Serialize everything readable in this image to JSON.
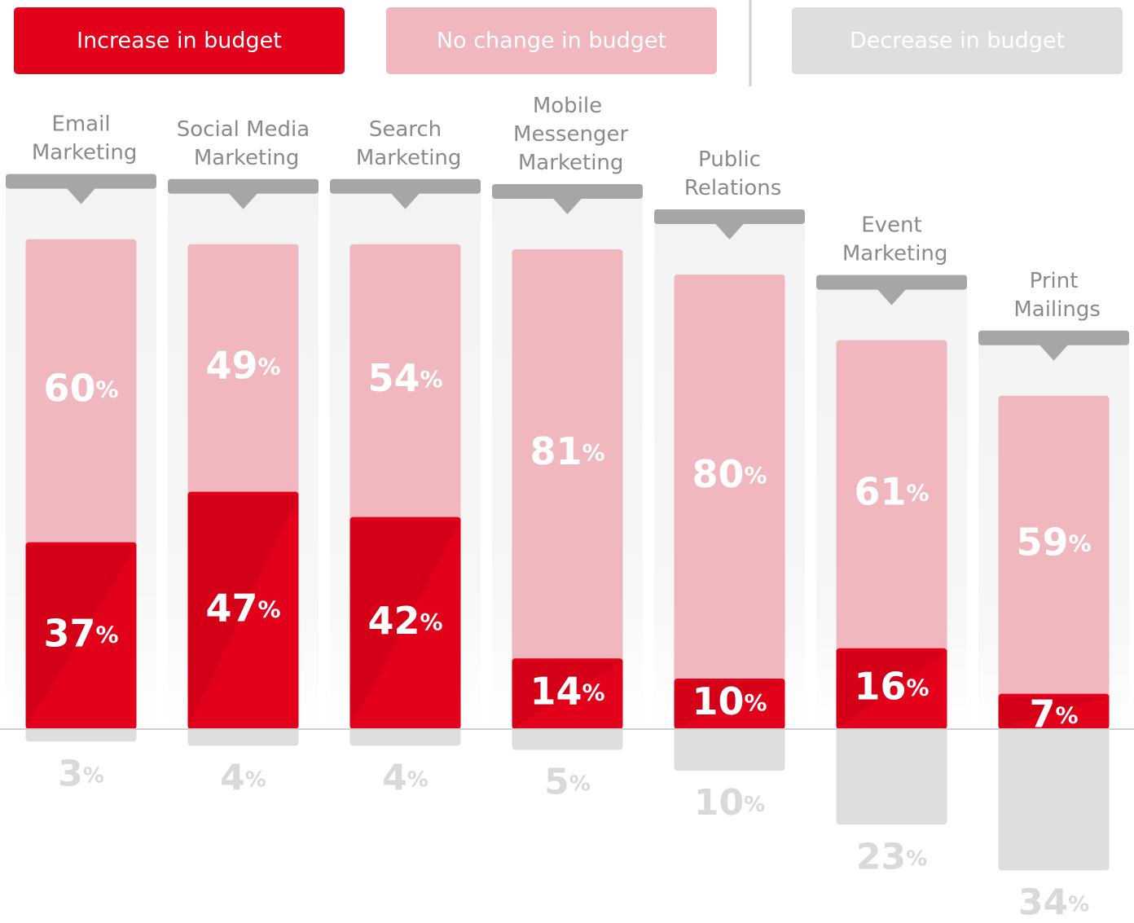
{
  "chart_data": {
    "type": "bar",
    "stacked": true,
    "categories": [
      "Email Marketing",
      "Social Media Marketing",
      "Search Marketing",
      "Mobile Messenger Marketing",
      "Public Relations",
      "Event Marketing",
      "Print Mailings"
    ],
    "series": [
      {
        "name": "Increase in budget",
        "color": "#e2001a",
        "values": [
          37,
          47,
          42,
          14,
          10,
          16,
          7
        ],
        "value_labels": [
          "37%",
          "47%",
          "42%",
          "14%",
          "10%",
          "16%",
          "7%"
        ]
      },
      {
        "name": "No change in budget",
        "color": "#f0b7be",
        "values": [
          60,
          49,
          54,
          81,
          80,
          61,
          59
        ],
        "value_labels": [
          "60%",
          "49%",
          "54%",
          "81%",
          "80%",
          "61%",
          "59%"
        ]
      },
      {
        "name": "Decrease in budget",
        "color": "#dedede",
        "values": [
          3,
          4,
          4,
          5,
          10,
          23,
          34
        ],
        "value_labels": [
          "3%",
          "4%",
          "4%",
          "5%",
          "10%",
          "23%",
          "34%"
        ]
      }
    ]
  }
}
